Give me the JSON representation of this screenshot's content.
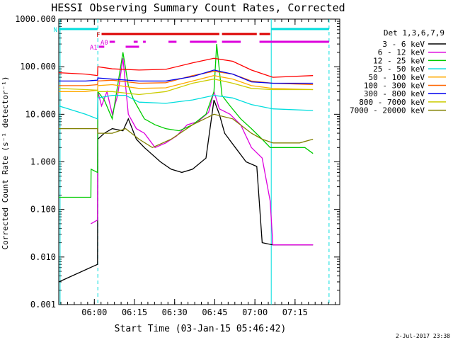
{
  "chart_data": {
    "type": "line",
    "title": "HESSI Observing Summary Count Rates, Corrected",
    "xlabel": "Start Time (03-Jan-15 05:46:42)",
    "ylabel": "Corrected Count Rate (s⁻¹ detector⁻¹)",
    "timestamp": "2-Jul-2017 23:38",
    "x_unit": "minutes after 05:46:42",
    "xlim": [
      0,
      105
    ],
    "ylim": [
      0.001,
      1000
    ],
    "yscale": "log",
    "x_ticks": [
      {
        "x": 13.3,
        "label": "06:00"
      },
      {
        "x": 28.3,
        "label": "06:15"
      },
      {
        "x": 43.3,
        "label": "06:30"
      },
      {
        "x": 58.3,
        "label": "06:45"
      },
      {
        "x": 73.3,
        "label": "07:00"
      },
      {
        "x": 88.3,
        "label": "07:15"
      }
    ],
    "y_ticks": [
      {
        "y": 0.001,
        "label": "0.001"
      },
      {
        "y": 0.01,
        "label": "0.010"
      },
      {
        "y": 0.1,
        "label": "0.100"
      },
      {
        "y": 1,
        "label": "1.000"
      },
      {
        "y": 10,
        "label": "10.000"
      },
      {
        "y": 100,
        "label": "100.000"
      },
      {
        "y": 1000,
        "label": "1000.000"
      }
    ],
    "legend_title": "Det 1,3,6,7,9",
    "legend_position": "right",
    "series": [
      {
        "name": "3 - 6 keV",
        "color": "#000000",
        "x": [
          0,
          14.5,
          14.6,
          17,
          20,
          24,
          26,
          29,
          32,
          38,
          42,
          46,
          50,
          55,
          58,
          60,
          62,
          66,
          70,
          74,
          76,
          80,
          88,
          95
        ],
        "y": [
          0.003,
          0.007,
          3,
          4,
          5,
          4.5,
          8,
          3,
          2,
          1,
          0.7,
          0.6,
          0.7,
          1.2,
          20,
          10,
          4,
          2,
          1,
          0.8,
          0.02,
          0.018,
          0.018,
          0.018
        ]
      },
      {
        "name": "6 - 12 keV",
        "color": "#dd00dd",
        "x": [
          12,
          14.5,
          14.6,
          16,
          18,
          20,
          22,
          24,
          26,
          29,
          32,
          36,
          40,
          44,
          48,
          52,
          56,
          58,
          60,
          64,
          68,
          72,
          76,
          79,
          80,
          85,
          95
        ],
        "y": [
          0.05,
          0.06,
          30,
          15,
          30,
          10,
          25,
          150,
          10,
          5,
          4,
          2,
          2.5,
          3.5,
          6,
          7,
          11,
          30,
          13,
          10,
          6,
          2,
          1.2,
          0.15,
          0.018,
          0.018,
          0.018
        ]
      },
      {
        "name": "12 - 25 keV",
        "color": "#00cc00",
        "x": [
          0,
          12,
          12.1,
          14.5,
          14.6,
          17,
          20,
          22,
          24,
          26,
          28,
          32,
          36,
          40,
          45,
          50,
          55,
          58,
          59,
          61,
          64,
          68,
          72,
          76,
          79,
          80,
          92,
          95
        ],
        "y": [
          0.18,
          0.18,
          0.7,
          0.6,
          30,
          20,
          8,
          40,
          200,
          40,
          20,
          8,
          6,
          5,
          4.5,
          6,
          10,
          30,
          300,
          25,
          15,
          8,
          5,
          3,
          2,
          2,
          2,
          1.5
        ]
      },
      {
        "name": "25 - 50 keV",
        "color": "#00dddd",
        "x": [
          0,
          10,
          14.5,
          14.6,
          20,
          25,
          30,
          40,
          50,
          58,
          65,
          72,
          80,
          95
        ],
        "y": [
          15,
          10,
          8,
          22,
          25,
          25,
          18,
          17,
          20,
          25,
          22,
          16,
          13,
          12
        ]
      },
      {
        "name": "50 - 100 keV",
        "color": "#ffaa00",
        "x": [
          0,
          10,
          14.5,
          14.6,
          20,
          30,
          40,
          50,
          58,
          65,
          72,
          80,
          95
        ],
        "y": [
          30,
          30,
          32,
          40,
          42,
          35,
          36,
          50,
          65,
          55,
          40,
          35,
          33
        ]
      },
      {
        "name": "100 - 300 keV",
        "color": "#ff6600",
        "x": [
          0,
          10,
          14.5,
          14.6,
          20,
          30,
          40,
          50,
          58,
          65,
          72,
          80,
          95
        ],
        "y": [
          40,
          40,
          42,
          50,
          52,
          45,
          46,
          65,
          80,
          70,
          50,
          45,
          42
        ]
      },
      {
        "name": "300 - 800 keV",
        "color": "#0000ee",
        "x": [
          0,
          10,
          14.5,
          14.6,
          20,
          30,
          40,
          50,
          58,
          65,
          72,
          80,
          95
        ],
        "y": [
          50,
          50,
          52,
          58,
          55,
          50,
          50,
          62,
          85,
          70,
          48,
          45,
          45
        ]
      },
      {
        "name": "800 - 7000 keV",
        "color": "#cccc00",
        "x": [
          0,
          10,
          14.5,
          14.6,
          20,
          30,
          40,
          50,
          58,
          65,
          72,
          80,
          95
        ],
        "y": [
          35,
          33,
          32,
          30,
          30,
          26,
          30,
          45,
          55,
          45,
          35,
          33,
          33
        ]
      },
      {
        "name": "7000 - 20000 keV",
        "color": "#808000",
        "x": [
          0,
          10,
          14.5,
          14.6,
          20,
          25,
          30,
          35,
          42,
          50,
          58,
          65,
          72,
          76,
          80,
          90,
          95
        ],
        "y": [
          5,
          5,
          5,
          4,
          4,
          5,
          3,
          2,
          3,
          6,
          10,
          8,
          4,
          3,
          2.5,
          2.5,
          3
        ]
      },
      {
        "name": "",
        "color": "#ff0000",
        "x": [
          0,
          10,
          14.5,
          14.6,
          20,
          30,
          40,
          50,
          58,
          65,
          72,
          80,
          95
        ],
        "y": [
          75,
          70,
          65,
          100,
          90,
          85,
          88,
          120,
          150,
          130,
          85,
          60,
          65
        ]
      }
    ],
    "flag_bars": [
      {
        "label": "N",
        "color": "#00dddd",
        "segments": [
          [
            0,
            14.5
          ],
          [
            79.5,
            101
          ]
        ]
      },
      {
        "label": "F",
        "color": "#dd0000",
        "segments": [
          [
            16,
            60
          ],
          [
            61,
            74
          ],
          [
            75,
            79
          ]
        ]
      },
      {
        "label": "A0",
        "color": "#dd00dd",
        "segments": [
          [
            19,
            21
          ],
          [
            28,
            29.5
          ],
          [
            31.5,
            32.5
          ],
          [
            41,
            44
          ],
          [
            49,
            59
          ],
          [
            61,
            68
          ],
          [
            75,
            101
          ]
        ]
      },
      {
        "label": "A1",
        "color": "#dd00dd",
        "segments": [
          [
            15,
            17
          ],
          [
            25,
            30
          ]
        ]
      }
    ],
    "vertical_markers": [
      {
        "x": 14.6,
        "color": "#00dddd",
        "style": "dashed"
      },
      {
        "x": 79.4,
        "color": "#00dddd",
        "style": "solid"
      },
      {
        "x": 101.0,
        "color": "#00dddd",
        "style": "dashed"
      },
      {
        "x": 0.5,
        "color": "#00dddd",
        "style": "solid"
      }
    ]
  }
}
